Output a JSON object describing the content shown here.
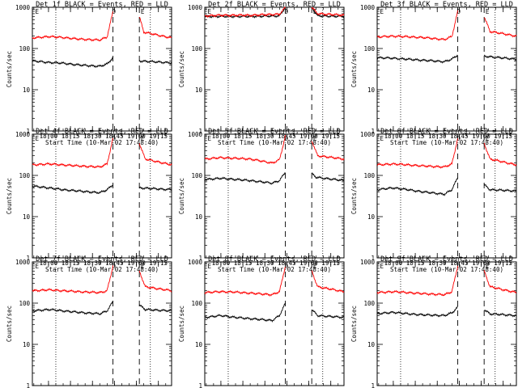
{
  "chart_data": {
    "type": "line",
    "grid": false,
    "common": {
      "xlabel": "Start Time (10-Mar-02 17:48:40)",
      "ylabel": "Counts/sec",
      "y_scale": "log",
      "ylim": [
        1,
        1000
      ],
      "y_ticks": [
        "1",
        "10",
        "100",
        "1000"
      ],
      "x_ticks": [
        "18:00",
        "18:15",
        "18:30",
        "18:45",
        "19:00",
        "19:15"
      ],
      "x_tick_minutes": [
        0,
        15,
        30,
        45,
        60,
        75
      ],
      "xlim_minutes": [
        -11,
        84
      ],
      "colors": {
        "events": "#000000",
        "lld": "#ff0000"
      },
      "dotted_lines_minutes": [
        5,
        69.5
      ],
      "dashed_lines_minutes": [
        44,
        62
      ],
      "top_markers": [
        {
          "label": "E",
          "minute": -10
        },
        {
          "label": "D",
          "minute": 43
        },
        {
          "label": "E",
          "minute": 62
        }
      ]
    },
    "panels": [
      {
        "title": "Det 1f BLACK = Events, RED = LLD",
        "series": [
          {
            "name": "Events",
            "values": [
              {
                "x": -11,
                "y": 50
              },
              {
                "x": 0,
                "y": 46
              },
              {
                "x": 10,
                "y": 44
              },
              {
                "x": 20,
                "y": 40
              },
              {
                "x": 35,
                "y": 37
              },
              {
                "x": 40,
                "y": 42
              },
              {
                "x": 44,
                "y": 60
              },
              {
                "x": 62,
                "y": 50
              },
              {
                "x": 84,
                "y": 45
              }
            ]
          },
          {
            "name": "LLD",
            "values": [
              {
                "x": -11,
                "y": 180
              },
              {
                "x": 0,
                "y": 195
              },
              {
                "x": 10,
                "y": 185
              },
              {
                "x": 20,
                "y": 170
              },
              {
                "x": 35,
                "y": 160
              },
              {
                "x": 40,
                "y": 190
              },
              {
                "x": 44,
                "y": 800
              },
              {
                "x": 62,
                "y": 600
              },
              {
                "x": 65,
                "y": 250
              },
              {
                "x": 84,
                "y": 180
              }
            ]
          }
        ]
      },
      {
        "title": "Det 2f BLACK = Events, RED = LLD",
        "series": [
          {
            "name": "Events",
            "values": [
              {
                "x": -11,
                "y": 600
              },
              {
                "x": 0,
                "y": 600
              },
              {
                "x": 20,
                "y": 600
              },
              {
                "x": 40,
                "y": 620
              },
              {
                "x": 44,
                "y": 1000
              },
              {
                "x": 62,
                "y": 1000
              },
              {
                "x": 66,
                "y": 620
              },
              {
                "x": 84,
                "y": 600
              }
            ]
          },
          {
            "name": "LLD",
            "values": [
              {
                "x": -11,
                "y": 620
              },
              {
                "x": 0,
                "y": 640
              },
              {
                "x": 20,
                "y": 640
              },
              {
                "x": 40,
                "y": 680
              },
              {
                "x": 44,
                "y": 1000
              },
              {
                "x": 62,
                "y": 1000
              },
              {
                "x": 66,
                "y": 700
              },
              {
                "x": 84,
                "y": 640
              }
            ]
          }
        ]
      },
      {
        "title": "Det 3f BLACK = Events, RED = LLD",
        "series": [
          {
            "name": "Events",
            "values": [
              {
                "x": -11,
                "y": 60
              },
              {
                "x": 0,
                "y": 58
              },
              {
                "x": 20,
                "y": 52
              },
              {
                "x": 35,
                "y": 48
              },
              {
                "x": 40,
                "y": 55
              },
              {
                "x": 44,
                "y": 70
              },
              {
                "x": 62,
                "y": 65
              },
              {
                "x": 84,
                "y": 55
              }
            ]
          },
          {
            "name": "LLD",
            "values": [
              {
                "x": -11,
                "y": 190
              },
              {
                "x": 0,
                "y": 200
              },
              {
                "x": 20,
                "y": 185
              },
              {
                "x": 35,
                "y": 165
              },
              {
                "x": 40,
                "y": 195
              },
              {
                "x": 44,
                "y": 800
              },
              {
                "x": 62,
                "y": 600
              },
              {
                "x": 66,
                "y": 260
              },
              {
                "x": 84,
                "y": 200
              }
            ]
          }
        ]
      },
      {
        "title": "Det 4f BLACK = Events, RED = LLD",
        "series": [
          {
            "name": "Events",
            "values": [
              {
                "x": -11,
                "y": 55
              },
              {
                "x": 0,
                "y": 50
              },
              {
                "x": 10,
                "y": 45
              },
              {
                "x": 20,
                "y": 42
              },
              {
                "x": 35,
                "y": 38
              },
              {
                "x": 40,
                "y": 45
              },
              {
                "x": 44,
                "y": 60
              },
              {
                "x": 62,
                "y": 50
              },
              {
                "x": 84,
                "y": 45
              }
            ]
          },
          {
            "name": "LLD",
            "values": [
              {
                "x": -11,
                "y": 180
              },
              {
                "x": 0,
                "y": 190
              },
              {
                "x": 10,
                "y": 180
              },
              {
                "x": 20,
                "y": 170
              },
              {
                "x": 35,
                "y": 160
              },
              {
                "x": 40,
                "y": 190
              },
              {
                "x": 44,
                "y": 800
              },
              {
                "x": 62,
                "y": 600
              },
              {
                "x": 66,
                "y": 250
              },
              {
                "x": 84,
                "y": 180
              }
            ]
          }
        ]
      },
      {
        "title": "Det 5f BLACK = Events, RED = LLD",
        "series": [
          {
            "name": "Events",
            "values": [
              {
                "x": -11,
                "y": 80
              },
              {
                "x": 0,
                "y": 85
              },
              {
                "x": 10,
                "y": 80
              },
              {
                "x": 20,
                "y": 75
              },
              {
                "x": 35,
                "y": 65
              },
              {
                "x": 40,
                "y": 75
              },
              {
                "x": 44,
                "y": 120
              },
              {
                "x": 62,
                "y": 110
              },
              {
                "x": 65,
                "y": 90
              },
              {
                "x": 84,
                "y": 75
              }
            ]
          },
          {
            "name": "LLD",
            "values": [
              {
                "x": -11,
                "y": 250
              },
              {
                "x": 0,
                "y": 270
              },
              {
                "x": 10,
                "y": 260
              },
              {
                "x": 20,
                "y": 250
              },
              {
                "x": 35,
                "y": 200
              },
              {
                "x": 40,
                "y": 240
              },
              {
                "x": 44,
                "y": 900
              },
              {
                "x": 62,
                "y": 700
              },
              {
                "x": 66,
                "y": 300
              },
              {
                "x": 84,
                "y": 250
              }
            ]
          }
        ]
      },
      {
        "title": "Det 6f BLACK = Events, RED = LLD",
        "series": [
          {
            "name": "Events",
            "values": [
              {
                "x": -11,
                "y": 45
              },
              {
                "x": 0,
                "y": 50
              },
              {
                "x": 10,
                "y": 45
              },
              {
                "x": 20,
                "y": 40
              },
              {
                "x": 35,
                "y": 35
              },
              {
                "x": 40,
                "y": 45
              },
              {
                "x": 44,
                "y": 90
              },
              {
                "x": 62,
                "y": 60
              },
              {
                "x": 66,
                "y": 45
              },
              {
                "x": 84,
                "y": 42
              }
            ]
          },
          {
            "name": "LLD",
            "values": [
              {
                "x": -11,
                "y": 180
              },
              {
                "x": 0,
                "y": 190
              },
              {
                "x": 10,
                "y": 180
              },
              {
                "x": 20,
                "y": 170
              },
              {
                "x": 35,
                "y": 160
              },
              {
                "x": 40,
                "y": 190
              },
              {
                "x": 44,
                "y": 800
              },
              {
                "x": 62,
                "y": 600
              },
              {
                "x": 66,
                "y": 250
              },
              {
                "x": 84,
                "y": 180
              }
            ]
          }
        ]
      },
      {
        "title": "Det 7f BLACK = Events, RED = LLD",
        "series": [
          {
            "name": "Events",
            "values": [
              {
                "x": -11,
                "y": 65
              },
              {
                "x": 0,
                "y": 70
              },
              {
                "x": 10,
                "y": 65
              },
              {
                "x": 20,
                "y": 60
              },
              {
                "x": 35,
                "y": 55
              },
              {
                "x": 40,
                "y": 65
              },
              {
                "x": 44,
                "y": 110
              },
              {
                "x": 62,
                "y": 90
              },
              {
                "x": 66,
                "y": 70
              },
              {
                "x": 84,
                "y": 65
              }
            ]
          },
          {
            "name": "LLD",
            "values": [
              {
                "x": -11,
                "y": 200
              },
              {
                "x": 0,
                "y": 210
              },
              {
                "x": 10,
                "y": 200
              },
              {
                "x": 20,
                "y": 190
              },
              {
                "x": 35,
                "y": 180
              },
              {
                "x": 40,
                "y": 200
              },
              {
                "x": 44,
                "y": 800
              },
              {
                "x": 62,
                "y": 600
              },
              {
                "x": 66,
                "y": 250
              },
              {
                "x": 84,
                "y": 200
              }
            ]
          }
        ]
      },
      {
        "title": "Det 8f BLACK = Events, RED = LLD",
        "series": [
          {
            "name": "Events",
            "values": [
              {
                "x": -11,
                "y": 45
              },
              {
                "x": 0,
                "y": 50
              },
              {
                "x": 10,
                "y": 45
              },
              {
                "x": 20,
                "y": 42
              },
              {
                "x": 35,
                "y": 38
              },
              {
                "x": 40,
                "y": 50
              },
              {
                "x": 44,
                "y": 100
              },
              {
                "x": 62,
                "y": 70
              },
              {
                "x": 66,
                "y": 50
              },
              {
                "x": 84,
                "y": 45
              }
            ]
          },
          {
            "name": "LLD",
            "values": [
              {
                "x": -11,
                "y": 180
              },
              {
                "x": 0,
                "y": 190
              },
              {
                "x": 10,
                "y": 185
              },
              {
                "x": 20,
                "y": 175
              },
              {
                "x": 35,
                "y": 160
              },
              {
                "x": 40,
                "y": 190
              },
              {
                "x": 44,
                "y": 800
              },
              {
                "x": 62,
                "y": 600
              },
              {
                "x": 66,
                "y": 250
              },
              {
                "x": 84,
                "y": 190
              }
            ]
          }
        ]
      },
      {
        "title": "Det 9f BLACK = Events, RED = LLD",
        "series": [
          {
            "name": "Events",
            "values": [
              {
                "x": -11,
                "y": 55
              },
              {
                "x": 0,
                "y": 60
              },
              {
                "x": 10,
                "y": 55
              },
              {
                "x": 20,
                "y": 52
              },
              {
                "x": 35,
                "y": 50
              },
              {
                "x": 40,
                "y": 58
              },
              {
                "x": 44,
                "y": 80
              },
              {
                "x": 62,
                "y": 70
              },
              {
                "x": 66,
                "y": 55
              },
              {
                "x": 84,
                "y": 50
              }
            ]
          },
          {
            "name": "LLD",
            "values": [
              {
                "x": -11,
                "y": 180
              },
              {
                "x": 0,
                "y": 190
              },
              {
                "x": 10,
                "y": 180
              },
              {
                "x": 20,
                "y": 170
              },
              {
                "x": 35,
                "y": 160
              },
              {
                "x": 40,
                "y": 190
              },
              {
                "x": 44,
                "y": 800
              },
              {
                "x": 62,
                "y": 600
              },
              {
                "x": 66,
                "y": 250
              },
              {
                "x": 84,
                "y": 180
              }
            ]
          }
        ]
      }
    ]
  }
}
